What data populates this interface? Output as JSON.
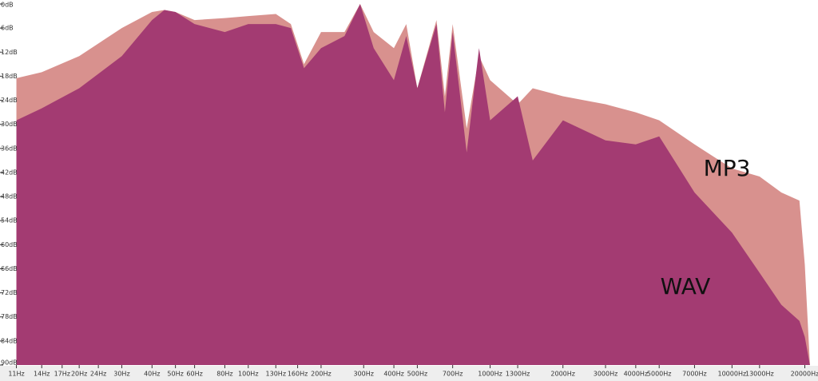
{
  "chart_data": {
    "type": "area",
    "log_x": true,
    "x": [
      11,
      14,
      20,
      30,
      40,
      45,
      50,
      60,
      80,
      100,
      130,
      150,
      170,
      200,
      250,
      290,
      330,
      400,
      450,
      500,
      600,
      650,
      700,
      800,
      900,
      1000,
      1300,
      1500,
      2000,
      3000,
      4000,
      5000,
      7000,
      10000,
      13000,
      16000,
      19000,
      20000,
      21000
    ],
    "series": [
      {
        "name": "MP3",
        "color": "#d8918e",
        "values": [
          -18.5,
          -17,
          -13,
          -6,
          -2,
          -1.5,
          -2,
          -4,
          -3.5,
          -3,
          -2.5,
          -5,
          -15,
          -7,
          -7,
          0,
          -7,
          -11,
          -5,
          -21,
          -4,
          -23,
          -5,
          -31,
          -13,
          -19,
          -25,
          -21,
          -23,
          -25,
          -27,
          -29,
          -35,
          -41,
          -43,
          -47,
          -49,
          -65,
          -90
        ]
      },
      {
        "name": "WAV",
        "color": "#a33b72",
        "values": [
          -29,
          -26,
          -21,
          -13,
          -4,
          -1.5,
          -2,
          -5,
          -7,
          -5,
          -5,
          -6,
          -16,
          -11,
          -8,
          0,
          -11,
          -19,
          -8,
          -21,
          -5,
          -27,
          -7,
          -37,
          -11,
          -29,
          -23,
          -39,
          -29,
          -34,
          -35,
          -33,
          -47,
          -57,
          -67,
          -75,
          -79,
          -83,
          -90
        ]
      }
    ],
    "annotations": [
      "MP3",
      "WAV"
    ],
    "xlim": [
      10,
      21500
    ],
    "ylim": [
      -90,
      0
    ],
    "xticks": [
      {
        "value": 11,
        "label": "11Hz"
      },
      {
        "value": 14,
        "label": "14Hz"
      },
      {
        "value": 17,
        "label": "17Hz"
      },
      {
        "value": 20,
        "label": "20Hz"
      },
      {
        "value": 24,
        "label": "24Hz"
      },
      {
        "value": 30,
        "label": "30Hz"
      },
      {
        "value": 40,
        "label": "40Hz"
      },
      {
        "value": 50,
        "label": "50Hz"
      },
      {
        "value": 60,
        "label": "60Hz"
      },
      {
        "value": 80,
        "label": "80Hz"
      },
      {
        "value": 100,
        "label": "100Hz"
      },
      {
        "value": 130,
        "label": "130Hz"
      },
      {
        "value": 160,
        "label": "160Hz"
      },
      {
        "value": 200,
        "label": "200Hz"
      },
      {
        "value": 300,
        "label": "300Hz"
      },
      {
        "value": 400,
        "label": "400Hz"
      },
      {
        "value": 500,
        "label": "500Hz"
      },
      {
        "value": 700,
        "label": "700Hz"
      },
      {
        "value": 1000,
        "label": "1000Hz"
      },
      {
        "value": 1300,
        "label": "1300Hz"
      },
      {
        "value": 2000,
        "label": "2000Hz"
      },
      {
        "value": 3000,
        "label": "3000Hz"
      },
      {
        "value": 4000,
        "label": "4000Hz"
      },
      {
        "value": 5000,
        "label": "5000Hz"
      },
      {
        "value": 7000,
        "label": "7000Hz"
      },
      {
        "value": 10000,
        "label": "10000Hz"
      },
      {
        "value": 13000,
        "label": "13000Hz"
      },
      {
        "value": 20000,
        "label": "20000Hz"
      }
    ],
    "yticks": [
      {
        "value": 0,
        "label": "0dB"
      },
      {
        "value": -6,
        "label": "6dB"
      },
      {
        "value": -12,
        "label": "12dB"
      },
      {
        "value": -18,
        "label": "18dB"
      },
      {
        "value": -24,
        "label": "24dB"
      },
      {
        "value": -30,
        "label": "30dB"
      },
      {
        "value": -36,
        "label": "36dB"
      },
      {
        "value": -42,
        "label": "42dB"
      },
      {
        "value": -48,
        "label": "48dB"
      },
      {
        "value": -54,
        "label": "54dB"
      },
      {
        "value": -60,
        "label": "60dB"
      },
      {
        "value": -66,
        "label": "66dB"
      },
      {
        "value": -72,
        "label": "72dB"
      },
      {
        "value": -78,
        "label": "78dB"
      },
      {
        "value": -84,
        "label": "84dB"
      },
      {
        "value": -90,
        "label": "90dB"
      }
    ],
    "grid": false
  }
}
